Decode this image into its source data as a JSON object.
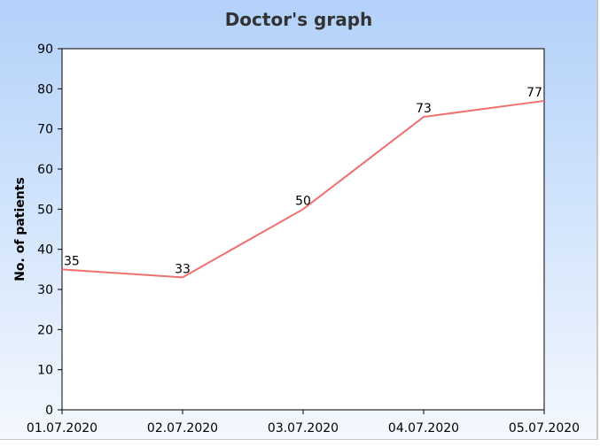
{
  "chart_data": {
    "type": "line",
    "title": "Doctor's graph",
    "xlabel": "",
    "ylabel": "No. of patients",
    "categories": [
      "01.07.2020",
      "02.07.2020",
      "03.07.2020",
      "04.07.2020",
      "05.07.2020"
    ],
    "series": [
      {
        "values": [
          35,
          33,
          50,
          73,
          77
        ],
        "color": "#f07070"
      }
    ],
    "ylim": [
      0,
      90
    ],
    "yticks": [
      "0",
      "10",
      "20",
      "30",
      "40",
      "50",
      "60",
      "70",
      "80",
      "90"
    ],
    "data_labels": [
      "35",
      "33",
      "50",
      "73",
      "77"
    ],
    "grid": false,
    "legend": "none"
  }
}
